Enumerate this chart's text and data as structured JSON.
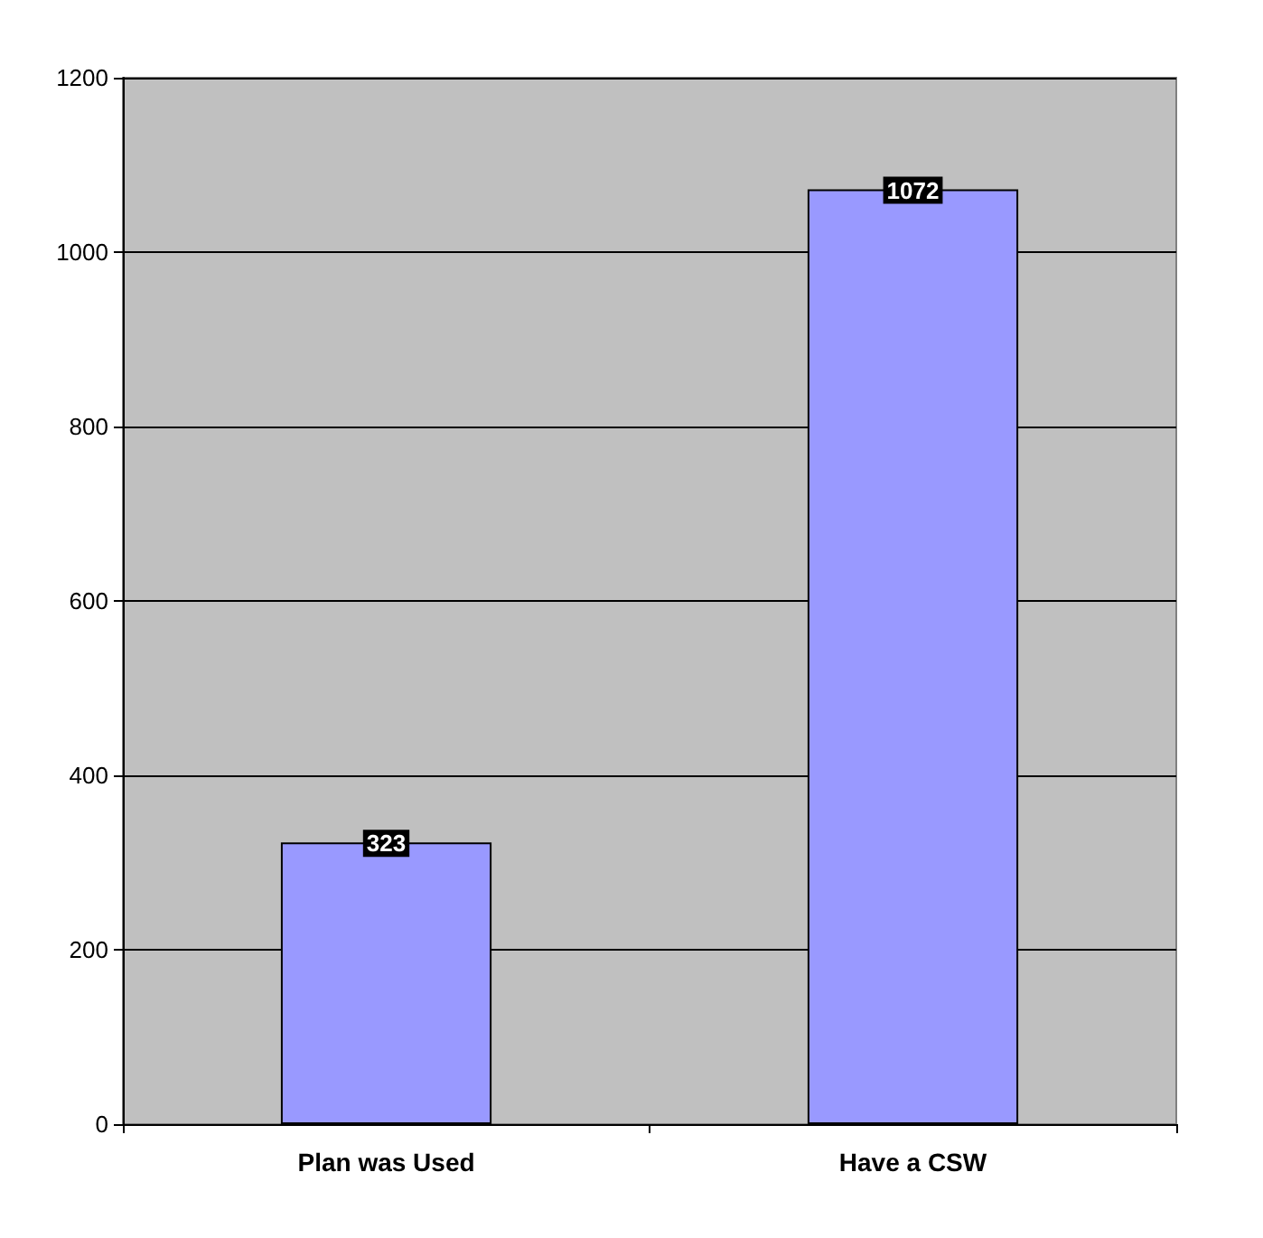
{
  "chart_data": {
    "type": "bar",
    "categories": [
      "Plan was Used",
      "Have a CSW"
    ],
    "values": [
      323,
      1072
    ],
    "color": "#9999ff",
    "ylim": [
      0,
      1200
    ],
    "yticks": [
      0,
      200,
      400,
      600,
      800,
      1000,
      1200
    ],
    "grid": "y",
    "data_labels": true
  }
}
